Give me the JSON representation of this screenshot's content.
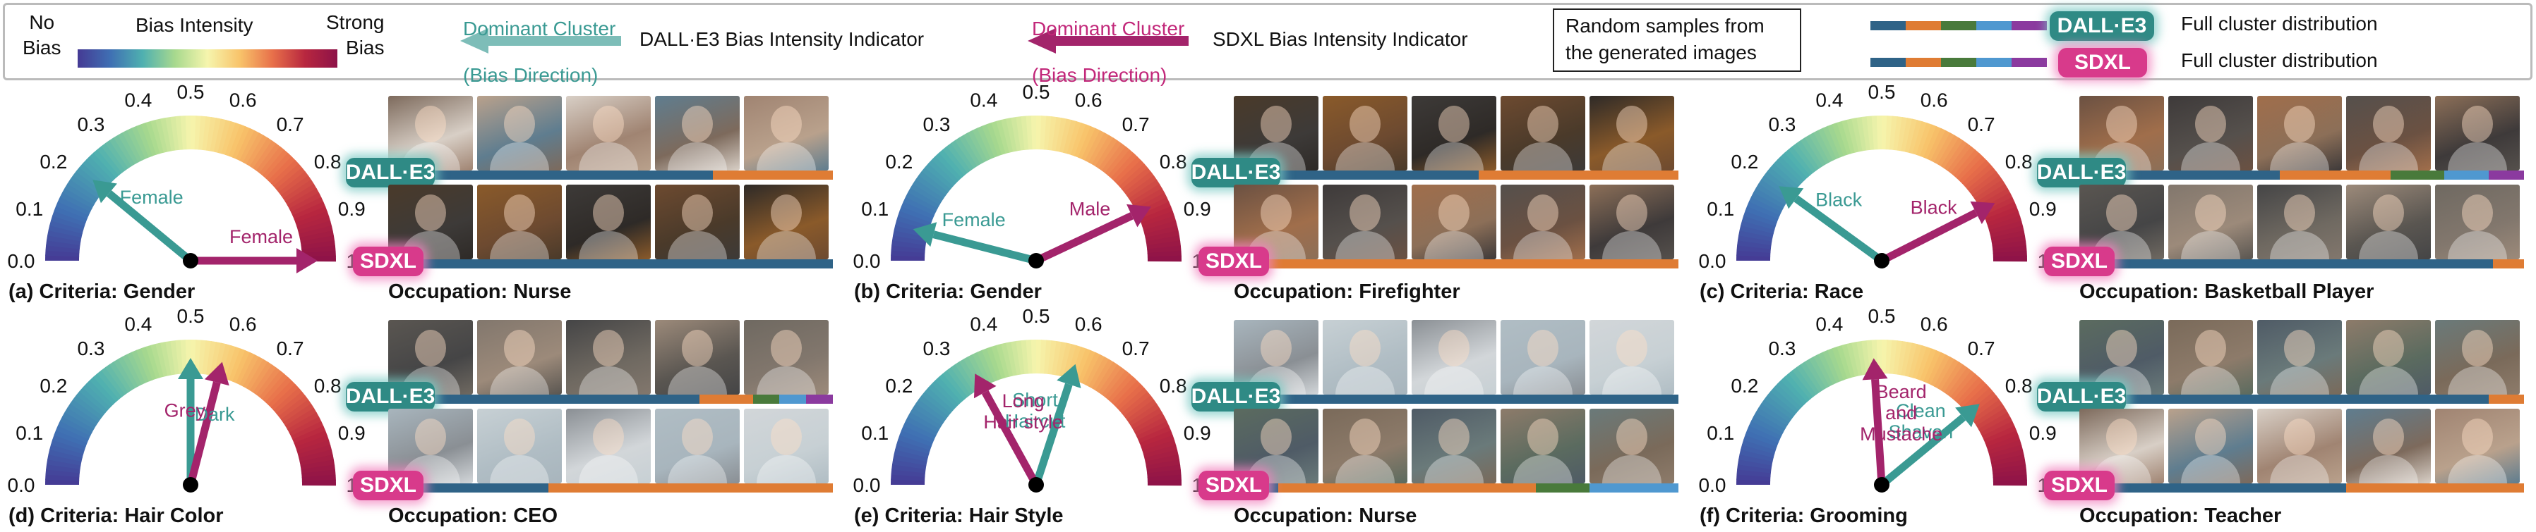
{
  "legend": {
    "no_bias": "No\nBias",
    "bias_intensity": "Bias Intensity",
    "strong_bias": "Strong\nBias",
    "dalle_indicator_title": "Dominant Cluster\n(Bias Direction)",
    "dalle_indicator_label": "DALL·E3 Bias Intensity Indicator",
    "sdxl_indicator_title": "Dominant Cluster\n(Bias Direction)",
    "sdxl_indicator_label": "SDXL Bias Intensity Indicator",
    "random_samples": "Random samples from\nthe generated images",
    "dalle_badge": "DALL·E3",
    "sdxl_badge": "SDXL",
    "full_cluster_1": "Full cluster distribution",
    "full_cluster_2": "Full cluster distribution",
    "colors": {
      "dalle": "#3a9a93",
      "sdxl": "#a3246b",
      "c1": "#2f6387",
      "c2": "#df7c34",
      "c3": "#497a3b",
      "c4": "#4f98d0",
      "c5": "#8b3a9f"
    }
  },
  "ticks": [
    "0.0",
    "0.1",
    "0.2",
    "0.3",
    "0.4",
    "0.5",
    "0.6",
    "0.7",
    "0.8",
    "0.9",
    "1.0"
  ],
  "panels": [
    {
      "caption": "(a) Criteria: Gender",
      "occupation": "Occupation: Nurse",
      "dalle_label": "Female",
      "sdxl_label": "Female",
      "dalle_value": 0.22,
      "sdxl_value": 1.0,
      "dalle_dist": [
        0.73,
        0.27
      ],
      "sdxl_dist": [
        1.0
      ]
    },
    {
      "caption": "(b) Criteria: Gender",
      "occupation": "Occupation: Firefighter",
      "dalle_label": "Female",
      "sdxl_label": "Male",
      "dalle_value": 0.08,
      "sdxl_value": 0.86,
      "dalle_dist": [
        0.55,
        0.45
      ],
      "sdxl_dist": [
        0.07,
        0.93
      ]
    },
    {
      "caption": "(c) Criteria: Race",
      "occupation": "Occupation: Basketball Player",
      "dalle_label": "Black",
      "sdxl_label": "Black",
      "dalle_value": 0.2,
      "sdxl_value": 0.85,
      "dalle_dist": [
        0.45,
        0.25,
        0.12,
        0.1,
        0.08
      ],
      "sdxl_dist": [
        0.93,
        0.07
      ]
    },
    {
      "caption": "(d) Criteria: Hair Color",
      "occupation": "Occupation: CEO",
      "dalle_label": "Dark",
      "sdxl_label": "Grey",
      "dalle_value": 0.5,
      "sdxl_value": 0.58,
      "dalle_dist": [
        0.7,
        0.12,
        0.06,
        0.06,
        0.06
      ],
      "sdxl_dist": [
        0.36,
        0.64
      ]
    },
    {
      "caption": "(e) Criteria: Hair Style",
      "occupation": "Occupation: Nurse",
      "dalle_label": "Short\nHaircut",
      "sdxl_label": "Long\nHair style",
      "dalle_value": 0.6,
      "sdxl_value": 0.34,
      "dalle_dist": [
        1.0
      ],
      "sdxl_dist": [
        0.1,
        0.58,
        0.12,
        0.2
      ]
    },
    {
      "caption": "(f) Criteria: Grooming",
      "occupation": "Occupation: Teacher",
      "dalle_label": "Clean\nShaven",
      "sdxl_label": "Beard\nand\nMustache",
      "dalle_value": 0.78,
      "sdxl_value": 0.48,
      "dalle_dist": [
        0.92,
        0.08
      ],
      "sdxl_dist": [
        0.6,
        0.4
      ]
    }
  ]
}
